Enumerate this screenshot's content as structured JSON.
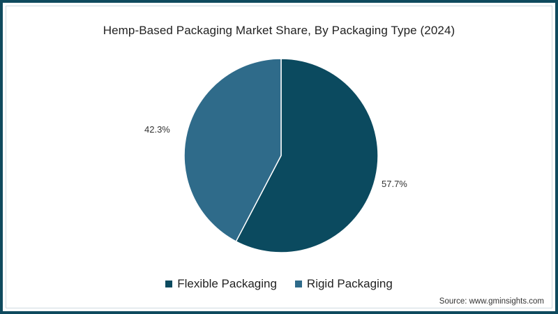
{
  "title": "Hemp-Based Packaging Market Share, By Packaging Type (2024)",
  "source": "Source: www.gminsights.com",
  "colors": {
    "flexible": "#0b4a5f",
    "rigid": "#2f6b8a",
    "border": "#0f4a5e"
  },
  "labels": {
    "flexible_pct": "57.7%",
    "rigid_pct": "42.3%"
  },
  "legend": [
    {
      "label": "Flexible Packaging",
      "color": "#0b4a5f"
    },
    {
      "label": "Rigid Packaging",
      "color": "#2f6b8a"
    }
  ],
  "chart_data": {
    "type": "pie",
    "title": "Hemp-Based Packaging Market Share, By Packaging Type (2024)",
    "categories": [
      "Flexible Packaging",
      "Rigid Packaging"
    ],
    "values": [
      57.7,
      42.3
    ],
    "unit": "%",
    "colors": [
      "#0b4a5f",
      "#2f6b8a"
    ],
    "legend_position": "bottom",
    "start_angle": "12 o'clock, clockwise",
    "source": "Source: www.gminsights.com"
  }
}
